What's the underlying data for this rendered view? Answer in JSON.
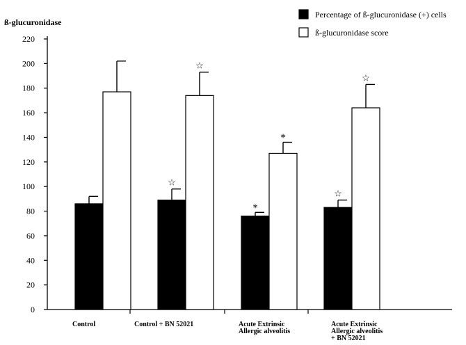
{
  "chart_data": {
    "type": "bar",
    "title": "",
    "ylabel": "ß-glucuronidase",
    "xlabel": "",
    "ylim": [
      0,
      220
    ],
    "yticks": [
      0,
      20,
      40,
      60,
      80,
      100,
      120,
      140,
      160,
      180,
      200,
      220
    ],
    "categories": [
      [
        "Control"
      ],
      [
        "Control + BN 52021"
      ],
      [
        "Acute Extrinsic",
        "Allergic alveolitis"
      ],
      [
        "Acute Extrinsic",
        "Allergic alveolitis",
        "+ BN 52021"
      ]
    ],
    "series": [
      {
        "name": "Percentage of ß-glucuronidase (+) cells",
        "color": "#000000",
        "values": [
          86,
          89,
          76,
          83
        ],
        "errors": [
          6,
          9,
          3,
          6
        ],
        "markers": [
          "",
          "☆",
          "∗",
          "☆"
        ]
      },
      {
        "name": "ß-glucuronidase score",
        "color": "#ffffff",
        "values": [
          177,
          174,
          127,
          164
        ],
        "errors": [
          25,
          19,
          9,
          19
        ],
        "markers": [
          "",
          "☆",
          "∗",
          "☆"
        ]
      }
    ],
    "legend_position": "top-right",
    "grid": false
  }
}
